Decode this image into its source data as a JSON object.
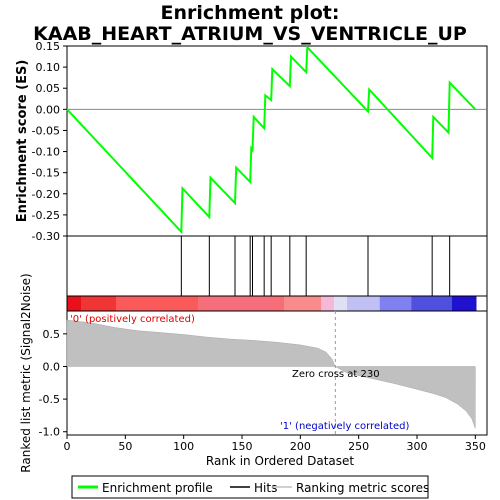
{
  "chart_data": {
    "type": "line",
    "title_line1": "Enrichment plot:",
    "title_line2": "KAAB_HEART_ATRIUM_VS_VENTRICLE_UP",
    "es_panel": {
      "ylabel": "Enrichment score (ES)",
      "ylim": [
        -0.3,
        0.15
      ],
      "yticks": [
        "0.15",
        "0.10",
        "0.05",
        "0.00",
        "-0.05",
        "-0.10",
        "-0.15",
        "-0.20",
        "-0.25",
        "-0.30"
      ],
      "ytick_values": [
        0.15,
        0.1,
        0.05,
        0.0,
        -0.05,
        -0.1,
        -0.15,
        -0.2,
        -0.25,
        -0.3
      ],
      "series_color": "#00ff00",
      "points": [
        [
          0,
          0.0
        ],
        [
          98,
          -0.29
        ],
        [
          99,
          -0.187
        ],
        [
          122,
          -0.255
        ],
        [
          123,
          -0.162
        ],
        [
          144,
          -0.222
        ],
        [
          145,
          -0.138
        ],
        [
          157,
          -0.172
        ],
        [
          158,
          -0.092
        ],
        [
          159,
          -0.096
        ],
        [
          160,
          -0.018
        ],
        [
          169,
          -0.045
        ],
        [
          170,
          0.033
        ],
        [
          175,
          0.022
        ],
        [
          176,
          0.095
        ],
        [
          191,
          0.055
        ],
        [
          192,
          0.125
        ],
        [
          205,
          0.088
        ],
        [
          206,
          0.147
        ],
        [
          258,
          -0.005
        ],
        [
          259,
          0.047
        ],
        [
          313,
          -0.115
        ],
        [
          314,
          -0.018
        ],
        [
          327,
          -0.055
        ],
        [
          328,
          0.063
        ],
        [
          350,
          0.0
        ]
      ]
    },
    "hits": [
      98,
      122,
      144,
      157,
      159,
      169,
      175,
      191,
      205,
      258,
      313,
      328
    ],
    "heatmap_segments": [
      {
        "from": 0,
        "to": 12,
        "color": "#e8101a"
      },
      {
        "from": 12,
        "to": 42,
        "color": "#f03535"
      },
      {
        "from": 42,
        "to": 113,
        "color": "#fa5a5a"
      },
      {
        "from": 113,
        "to": 186,
        "color": "#f56e7a"
      },
      {
        "from": 186,
        "to": 218,
        "color": "#f88c8c"
      },
      {
        "from": 218,
        "to": 229,
        "color": "#f5b8d8"
      },
      {
        "from": 229,
        "to": 240,
        "color": "#e0e0f2"
      },
      {
        "from": 240,
        "to": 268,
        "color": "#c0c0f4"
      },
      {
        "from": 268,
        "to": 295,
        "color": "#8080f0"
      },
      {
        "from": 295,
        "to": 330,
        "color": "#5050e0"
      },
      {
        "from": 330,
        "to": 351,
        "color": "#2010d0"
      }
    ],
    "metric_panel": {
      "ylabel": "Ranked list metric (Signal2Noise)",
      "ylim": [
        -1.05,
        0.85
      ],
      "yticks": [
        "0.5",
        "0.0",
        "-0.5",
        "-1.0"
      ],
      "ytick_values": [
        0.5,
        0.0,
        -0.5,
        -1.0
      ],
      "curve": [
        [
          0,
          0.71
        ],
        [
          10,
          0.69
        ],
        [
          20,
          0.67
        ],
        [
          40,
          0.6
        ],
        [
          60,
          0.55
        ],
        [
          80,
          0.52
        ],
        [
          100,
          0.49
        ],
        [
          120,
          0.45
        ],
        [
          140,
          0.42
        ],
        [
          160,
          0.4
        ],
        [
          180,
          0.37
        ],
        [
          200,
          0.33
        ],
        [
          215,
          0.28
        ],
        [
          222,
          0.22
        ],
        [
          227,
          0.12
        ],
        [
          230,
          0.0
        ],
        [
          240,
          -0.1
        ],
        [
          260,
          -0.18
        ],
        [
          280,
          -0.26
        ],
        [
          300,
          -0.35
        ],
        [
          315,
          -0.42
        ],
        [
          325,
          -0.48
        ],
        [
          335,
          -0.58
        ],
        [
          342,
          -0.68
        ],
        [
          347,
          -0.8
        ],
        [
          350,
          -0.95
        ]
      ],
      "pos_label": "'0' (positively correlated)",
      "neg_label": "'1' (negatively correlated)",
      "zero_cross_label": "Zero cross at 230",
      "zero_cross": 230
    },
    "xlabel": "Rank in Ordered Dataset",
    "xlim": [
      0,
      360
    ],
    "xticks": [
      "0",
      "50",
      "100",
      "150",
      "200",
      "250",
      "300",
      "350"
    ],
    "xtick_values": [
      0,
      50,
      100,
      150,
      200,
      250,
      300,
      350
    ],
    "legend": {
      "items": [
        {
          "label": "Enrichment profile",
          "color": "#00ff00"
        },
        {
          "label": "Hits",
          "color": "#000000"
        },
        {
          "label": "Ranking metric scores",
          "color": "#c0c0c0"
        }
      ]
    }
  }
}
